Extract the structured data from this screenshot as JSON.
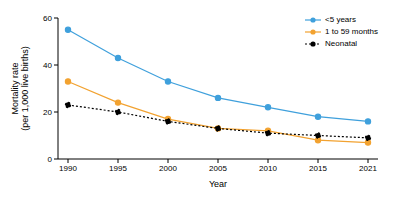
{
  "chart_data": {
    "type": "line",
    "x_label": "Year",
    "y_label": "Mortality rate (per 1,000 live births)",
    "categories": [
      "1990",
      "1995",
      "2000",
      "2005",
      "2010",
      "2015",
      "2021"
    ],
    "series": [
      {
        "name": "<5 years",
        "color": "#3fa0dc",
        "marker": "circle",
        "line_style": "solid",
        "values": [
          55,
          43,
          33,
          26,
          22,
          18,
          16
        ]
      },
      {
        "name": "1 to 59 months",
        "color": "#f2a230",
        "marker": "circle",
        "line_style": "solid",
        "values": [
          33,
          24,
          17,
          13,
          12,
          8,
          7
        ]
      },
      {
        "name": "Neonatal",
        "color": "#000000",
        "marker": "circle",
        "line_style": "dotted",
        "values": [
          23,
          20,
          16,
          13,
          11,
          10,
          9
        ]
      }
    ],
    "ylim": [
      0,
      60
    ],
    "yticks": [
      0,
      20,
      40,
      60
    ],
    "grid": false,
    "legend": "top-right"
  }
}
